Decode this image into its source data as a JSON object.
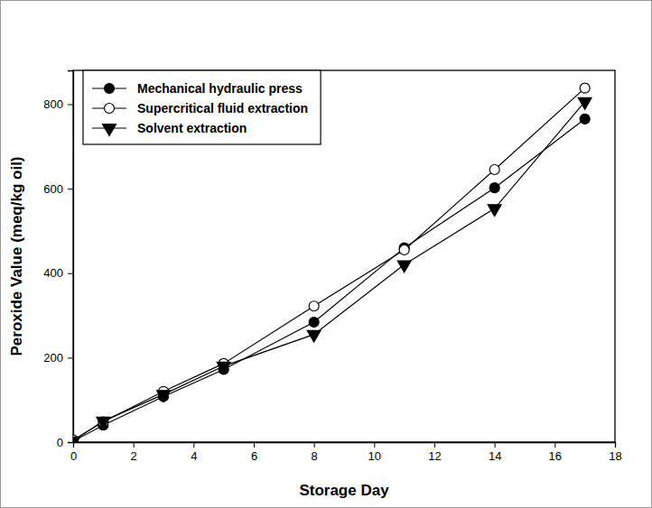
{
  "chart_data": {
    "type": "line",
    "x_label": "Storage Day",
    "y_label": "Peroxide Value (meq/kg oil)",
    "x": [
      0,
      1,
      3,
      5,
      8,
      11,
      14,
      17
    ],
    "series": [
      {
        "name": "Mechanical hydraulic press",
        "color": "#000000",
        "marker": "circle",
        "line_style": "solid",
        "values": [
          2,
          40,
          108,
          172,
          284,
          460,
          602,
          765
        ]
      },
      {
        "name": "Supercritical fluid extraction",
        "color": "#000000",
        "marker": "open-circle",
        "line_style": "solid",
        "values": [
          5,
          48,
          120,
          186,
          322,
          455,
          645,
          838
        ]
      },
      {
        "name": "Solvent extraction",
        "color": "#000000",
        "marker": "triangle-down",
        "line_style": "solid",
        "values": [
          3,
          50,
          113,
          180,
          255,
          420,
          553,
          806
        ]
      }
    ],
    "xlim": [
      0,
      18
    ],
    "xticks": [
      0,
      2,
      4,
      6,
      8,
      10,
      12,
      14,
      16,
      18
    ],
    "ylim": [
      0,
      880
    ],
    "yticks": [
      0,
      200,
      400,
      600,
      800
    ],
    "grid": false,
    "legend": "upper left"
  }
}
